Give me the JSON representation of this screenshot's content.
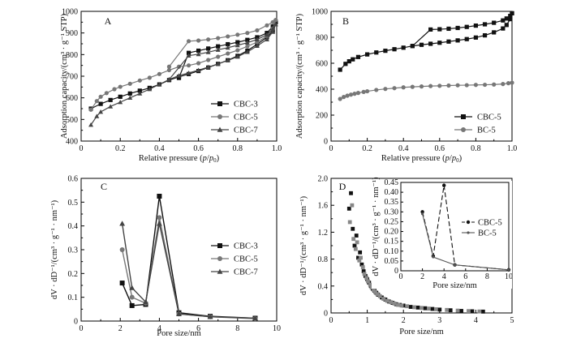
{
  "chart_data": [
    {
      "type": "line",
      "panel_label": "A",
      "xlabel": "Relative pressure (p/p0)",
      "ylabel": "Adsorption capacity/(cm³ · g⁻¹ STP)",
      "xlim": [
        0,
        1.0
      ],
      "ylim": [
        400,
        1000
      ],
      "xticks": [
        "0",
        "0.2",
        "0.4",
        "0.6",
        "0.8",
        "1.0"
      ],
      "yticks": [
        "400",
        "500",
        "600",
        "700",
        "800",
        "900",
        "1000"
      ],
      "legend_position": "bottom-right",
      "series": [
        {
          "name": "CBC-3",
          "marker": "square",
          "color": "#111111",
          "adsorption": [
            [
              0.05,
              550
            ],
            [
              0.1,
              572
            ],
            [
              0.15,
              590
            ],
            [
              0.2,
              605
            ],
            [
              0.25,
              620
            ],
            [
              0.3,
              633
            ],
            [
              0.35,
              646
            ],
            [
              0.4,
              662
            ],
            [
              0.45,
              682
            ],
            [
              0.5,
              697
            ],
            [
              0.55,
              710
            ],
            [
              0.6,
              724
            ],
            [
              0.65,
              740
            ],
            [
              0.7,
              757
            ],
            [
              0.75,
              774
            ],
            [
              0.8,
              794
            ],
            [
              0.85,
              818
            ],
            [
              0.9,
              848
            ],
            [
              0.95,
              880
            ],
            [
              0.98,
              910
            ],
            [
              0.995,
              950
            ]
          ],
          "desorption": [
            [
              0.995,
              950
            ],
            [
              0.98,
              930
            ],
            [
              0.95,
              900
            ],
            [
              0.9,
              880
            ],
            [
              0.85,
              868
            ],
            [
              0.8,
              857
            ],
            [
              0.75,
              848
            ],
            [
              0.7,
              838
            ],
            [
              0.65,
              828
            ],
            [
              0.6,
              818
            ],
            [
              0.55,
              808
            ],
            [
              0.5,
              692
            ]
          ]
        },
        {
          "name": "CBC-5",
          "marker": "circle",
          "color": "#777777",
          "adsorption": [
            [
              0.05,
              545
            ],
            [
              0.08,
              585
            ],
            [
              0.1,
              605
            ],
            [
              0.13,
              622
            ],
            [
              0.17,
              640
            ],
            [
              0.2,
              651
            ],
            [
              0.25,
              665
            ],
            [
              0.3,
              680
            ],
            [
              0.35,
              693
            ],
            [
              0.4,
              710
            ],
            [
              0.45,
              728
            ],
            [
              0.5,
              744
            ],
            [
              0.55,
              750
            ],
            [
              0.6,
              760
            ],
            [
              0.65,
              775
            ],
            [
              0.7,
              790
            ],
            [
              0.75,
              805
            ],
            [
              0.8,
              820
            ],
            [
              0.85,
              838
            ],
            [
              0.9,
              858
            ],
            [
              0.95,
              885
            ],
            [
              0.98,
              920
            ],
            [
              0.995,
              960
            ]
          ],
          "desorption": [
            [
              0.995,
              960
            ],
            [
              0.98,
              950
            ],
            [
              0.95,
              935
            ],
            [
              0.9,
              912
            ],
            [
              0.85,
              900
            ],
            [
              0.8,
              892
            ],
            [
              0.75,
              884
            ],
            [
              0.7,
              876
            ],
            [
              0.65,
              870
            ],
            [
              0.6,
              865
            ],
            [
              0.55,
              862
            ],
            [
              0.45,
              744
            ]
          ]
        },
        {
          "name": "CBC-7",
          "marker": "triangle",
          "color": "#444444",
          "adsorption": [
            [
              0.05,
              475
            ],
            [
              0.08,
              515
            ],
            [
              0.1,
              535
            ],
            [
              0.15,
              560
            ],
            [
              0.2,
              580
            ],
            [
              0.25,
              600
            ],
            [
              0.3,
              620
            ],
            [
              0.35,
              640
            ],
            [
              0.4,
              662
            ],
            [
              0.45,
              685
            ],
            [
              0.5,
              703
            ],
            [
              0.55,
              715
            ],
            [
              0.6,
              728
            ],
            [
              0.65,
              742
            ],
            [
              0.7,
              757
            ],
            [
              0.75,
              773
            ],
            [
              0.8,
              790
            ],
            [
              0.85,
              812
            ],
            [
              0.9,
              840
            ],
            [
              0.95,
              870
            ],
            [
              0.98,
              905
            ],
            [
              0.995,
              940
            ]
          ],
          "desorption": [
            [
              0.995,
              940
            ],
            [
              0.98,
              920
            ],
            [
              0.95,
              892
            ],
            [
              0.9,
              870
            ],
            [
              0.85,
              855
            ],
            [
              0.8,
              843
            ],
            [
              0.75,
              832
            ],
            [
              0.7,
              822
            ],
            [
              0.65,
              811
            ],
            [
              0.6,
              802
            ],
            [
              0.55,
              795
            ],
            [
              0.45,
              685
            ]
          ]
        }
      ]
    },
    {
      "type": "line",
      "panel_label": "B",
      "xlabel": "Relative pressure (p/p0)",
      "ylabel": "Adsorption capacity/(cm³ · g⁻¹ STP)",
      "xlim": [
        0,
        1.0
      ],
      "ylim": [
        0,
        1000
      ],
      "xticks": [
        "0",
        "0.2",
        "0.4",
        "0.6",
        "0.8",
        "1.0"
      ],
      "yticks": [
        "0",
        "200",
        "400",
        "600",
        "800",
        "1000"
      ],
      "legend_position": "bottom-right",
      "series": [
        {
          "name": "CBC-5",
          "marker": "square",
          "color": "#111111",
          "adsorption": [
            [
              0.05,
              550
            ],
            [
              0.08,
              595
            ],
            [
              0.1,
              615
            ],
            [
              0.12,
              630
            ],
            [
              0.15,
              648
            ],
            [
              0.2,
              668
            ],
            [
              0.25,
              683
            ],
            [
              0.3,
              696
            ],
            [
              0.35,
              708
            ],
            [
              0.4,
              720
            ],
            [
              0.45,
              733
            ],
            [
              0.5,
              742
            ],
            [
              0.55,
              750
            ],
            [
              0.6,
              758
            ],
            [
              0.65,
              767
            ],
            [
              0.7,
              776
            ],
            [
              0.75,
              786
            ],
            [
              0.8,
              798
            ],
            [
              0.85,
              815
            ],
            [
              0.9,
              838
            ],
            [
              0.95,
              868
            ],
            [
              0.97,
              895
            ],
            [
              0.99,
              940
            ],
            [
              1.0,
              985
            ]
          ],
          "desorption": [
            [
              1.0,
              985
            ],
            [
              0.99,
              965
            ],
            [
              0.97,
              945
            ],
            [
              0.95,
              930
            ],
            [
              0.9,
              912
            ],
            [
              0.85,
              900
            ],
            [
              0.8,
              890
            ],
            [
              0.75,
              880
            ],
            [
              0.7,
              872
            ],
            [
              0.65,
              866
            ],
            [
              0.6,
              862
            ],
            [
              0.55,
              860
            ],
            [
              0.45,
              733
            ]
          ]
        },
        {
          "name": "BC-5",
          "marker": "circle",
          "color": "#777777",
          "adsorption": [
            [
              0.05,
              325
            ],
            [
              0.07,
              340
            ],
            [
              0.09,
              350
            ],
            [
              0.11,
              358
            ],
            [
              0.13,
              365
            ],
            [
              0.15,
              371
            ],
            [
              0.18,
              379
            ],
            [
              0.2,
              384
            ],
            [
              0.25,
              394
            ],
            [
              0.3,
              402
            ],
            [
              0.35,
              408
            ],
            [
              0.4,
              414
            ],
            [
              0.45,
              418
            ],
            [
              0.5,
              421
            ],
            [
              0.55,
              424
            ],
            [
              0.6,
              426
            ],
            [
              0.65,
              428
            ],
            [
              0.7,
              430
            ],
            [
              0.75,
              431
            ],
            [
              0.8,
              433
            ],
            [
              0.85,
              434
            ],
            [
              0.9,
              436
            ],
            [
              0.95,
              440
            ],
            [
              0.98,
              446
            ],
            [
              1.0,
              450
            ]
          ],
          "desorption": []
        }
      ]
    },
    {
      "type": "line",
      "panel_label": "C",
      "xlabel": "Pore size/nm",
      "ylabel": "dV · dD⁻¹/(cm³ · g⁻¹ · nm⁻¹)",
      "xlim": [
        0,
        10
      ],
      "ylim": [
        0,
        0.6
      ],
      "xticks": [
        "0",
        "2",
        "4",
        "6",
        "8",
        "10"
      ],
      "yticks": [
        "0",
        "0.1",
        "0.2",
        "0.3",
        "0.4",
        "0.5",
        "0.6"
      ],
      "legend_position": "top-right",
      "series": [
        {
          "name": "CBC-3",
          "marker": "square",
          "color": "#111111",
          "x": [
            2.1,
            2.6,
            3.3,
            4.0,
            5.0,
            6.6,
            8.9
          ],
          "y": [
            0.16,
            0.065,
            0.07,
            0.525,
            0.035,
            0.02,
            0.012
          ]
        },
        {
          "name": "CBC-5",
          "marker": "circle",
          "color": "#777777",
          "x": [
            2.1,
            2.6,
            3.3,
            4.0,
            5.0,
            6.6,
            8.9
          ],
          "y": [
            0.3,
            0.1,
            0.075,
            0.435,
            0.03,
            0.018,
            0.01
          ]
        },
        {
          "name": "CBC-7",
          "marker": "triangle",
          "color": "#444444",
          "x": [
            2.1,
            2.6,
            3.3,
            4.0,
            5.0,
            6.6,
            8.9
          ],
          "y": [
            0.41,
            0.14,
            0.08,
            0.41,
            0.03,
            0.018,
            0.012
          ]
        }
      ]
    },
    {
      "type": "scatter",
      "panel_label": "D",
      "xlabel": "Pore size/nm",
      "ylabel": "dV · dD⁻¹/(cm³ · g⁻¹ · nm⁻¹)",
      "xlim": [
        0,
        5
      ],
      "ylim": [
        0,
        2.0
      ],
      "xticks": [
        "0",
        "1",
        "2",
        "3",
        "4",
        "5"
      ],
      "yticks": [
        "0",
        "0.4",
        "0.8",
        "1.2",
        "1.6",
        "2.0"
      ],
      "series": [
        {
          "name": "CBC-5",
          "marker": "square",
          "color": "#111111",
          "x": [
            0.5,
            0.55,
            0.6,
            0.65,
            0.7,
            0.75,
            0.8,
            0.85,
            0.9,
            0.95,
            1.0,
            1.05,
            1.1,
            1.15,
            1.2,
            1.25,
            1.3,
            1.4,
            1.5,
            1.6,
            1.7,
            1.8,
            1.9,
            2.0,
            2.2,
            2.4,
            2.6,
            2.8,
            3.0,
            3.3,
            3.6,
            3.9,
            4.2
          ],
          "y": [
            1.55,
            1.78,
            1.25,
            1.0,
            1.15,
            0.82,
            0.9,
            0.72,
            0.62,
            0.55,
            0.5,
            0.45,
            0.4,
            0.36,
            0.33,
            0.3,
            0.27,
            0.23,
            0.2,
            0.17,
            0.15,
            0.13,
            0.12,
            0.11,
            0.09,
            0.08,
            0.07,
            0.06,
            0.05,
            0.04,
            0.03,
            0.025,
            0.02
          ]
        },
        {
          "name": "BC-5",
          "marker": "square",
          "color": "#888888",
          "x": [
            0.52,
            0.58,
            0.62,
            0.68,
            0.72,
            0.78,
            0.82,
            0.88,
            0.92,
            0.98,
            1.02,
            1.08,
            1.12,
            1.18,
            1.22,
            1.28,
            1.35,
            1.45,
            1.55,
            1.65,
            1.75,
            1.85,
            1.95,
            2.1,
            2.3,
            2.5,
            2.7,
            2.9,
            3.2,
            3.5,
            3.8,
            4.1
          ],
          "y": [
            1.35,
            1.6,
            1.1,
            0.95,
            1.05,
            0.78,
            0.82,
            0.68,
            0.58,
            0.52,
            0.47,
            0.42,
            0.38,
            0.34,
            0.31,
            0.28,
            0.25,
            0.21,
            0.18,
            0.16,
            0.14,
            0.12,
            0.11,
            0.1,
            0.085,
            0.075,
            0.065,
            0.055,
            0.045,
            0.035,
            0.028,
            0.022
          ]
        }
      ],
      "inset": {
        "type": "line",
        "xlabel": "Pore size/nm",
        "ylabel": "dV · dD⁻¹/(cm³ · g⁻¹ · nm⁻¹)",
        "xlim": [
          0,
          10
        ],
        "ylim": [
          0,
          0.45
        ],
        "xticks": [
          "0",
          "2",
          "4",
          "6",
          "8",
          "10"
        ],
        "yticks": [
          "0",
          "0.05",
          "0.10",
          "0.15",
          "0.20",
          "0.25",
          "0.30",
          "0.35",
          "0.40",
          "0.45"
        ],
        "legend_position": "right",
        "series": [
          {
            "name": "CBC-5",
            "marker": "circle",
            "color": "#111111",
            "dashed": true,
            "x": [
              2.0,
              3.0,
              4.0,
              5.0,
              10.0
            ],
            "y": [
              0.3,
              0.075,
              0.435,
              0.03,
              0.005
            ]
          },
          {
            "name": "BC-5",
            "marker": "circle-small",
            "color": "#555555",
            "dashed": false,
            "x": [
              2.0,
              3.0,
              5.0,
              10.0
            ],
            "y": [
              0.29,
              0.07,
              0.03,
              0.005
            ]
          }
        ]
      }
    }
  ]
}
